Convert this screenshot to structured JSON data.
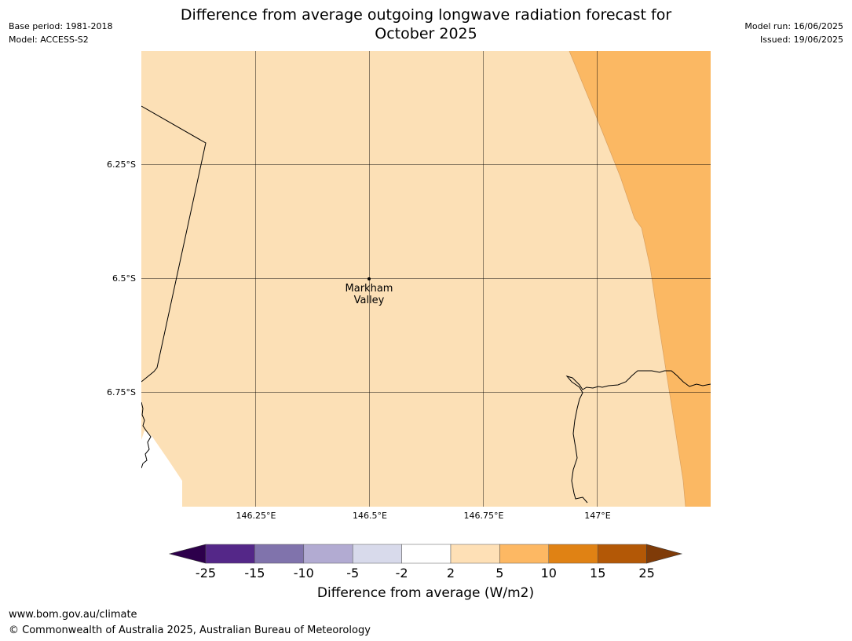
{
  "header": {
    "title_line1": "Difference from average outgoing longwave radiation forecast for",
    "title_line2": "October 2025",
    "base_period": "Base period: 1981-2018",
    "model": "Model: ACCESS-S2",
    "model_run": "Model run: 16/06/2025",
    "issued": "Issued: 19/06/2025"
  },
  "map": {
    "lat_labels": [
      "6.25°S",
      "6.5°S",
      "6.75°S"
    ],
    "lon_labels": [
      "146.25°E",
      "146.5°E",
      "146.75°E",
      "147°E"
    ],
    "place": {
      "line1": "Markham",
      "line2": "Valley"
    },
    "fill_colors": {
      "light": "#fce0b6",
      "medium": "#fbb863",
      "sea": "#ffffff"
    }
  },
  "colorbar": {
    "ticks": [
      "-25",
      "-15",
      "-10",
      "-5",
      "-2",
      "2",
      "5",
      "10",
      "15",
      "25"
    ],
    "colors": [
      "#2d004b",
      "#542788",
      "#8073ac",
      "#b2abd2",
      "#d8daeb",
      "#ffffff",
      "#fee0b6",
      "#fdb863",
      "#e08214",
      "#b35806",
      "#7f3b08"
    ],
    "label": "Difference from average (W/m2)"
  },
  "footer": {
    "url": "www.bom.gov.au/climate",
    "copyright": "© Commonwealth of Australia 2025, Australian Bureau of Meteorology"
  }
}
